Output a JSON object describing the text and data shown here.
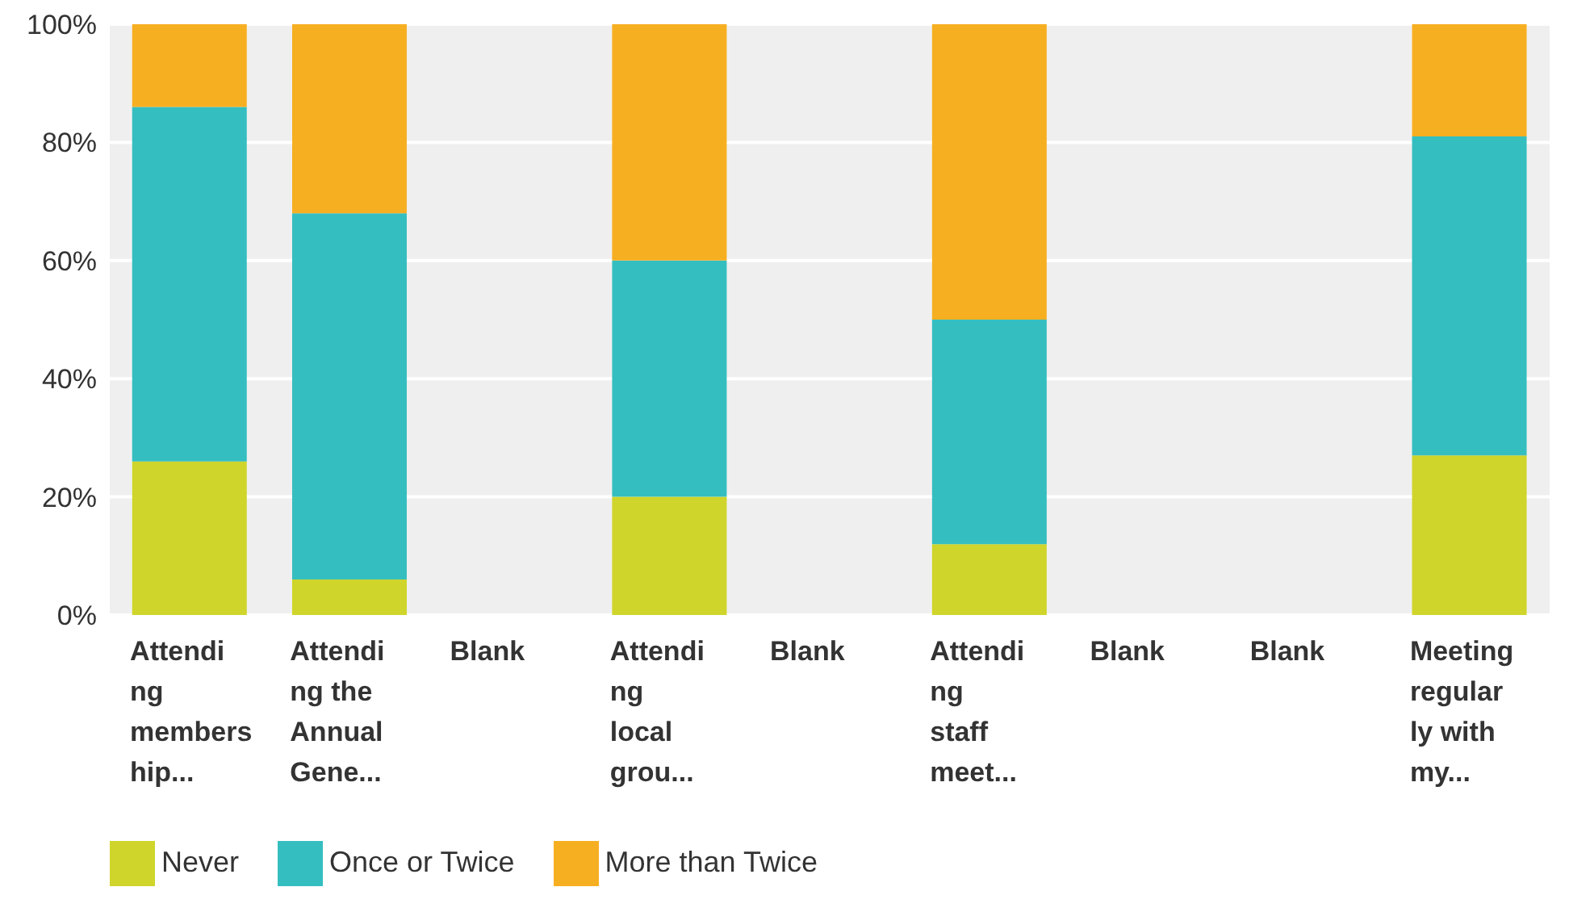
{
  "chart_data": {
    "type": "bar",
    "stacked": true,
    "categories": [
      "Attending membership...",
      "Attending the Annual Gene...",
      "Blank",
      "Attending local grou...",
      "Blank",
      "Attending staff meet...",
      "Blank",
      "Blank",
      "Meeting regularly with my..."
    ],
    "series": [
      {
        "name": "Never",
        "color": "#cfd52a",
        "values": [
          26,
          6,
          null,
          20,
          null,
          12,
          null,
          null,
          27
        ]
      },
      {
        "name": "Once or Twice",
        "color": "#35bec0",
        "values": [
          60,
          62,
          null,
          40,
          null,
          38,
          null,
          null,
          54
        ]
      },
      {
        "name": "More than Twice",
        "color": "#f7af22",
        "values": [
          14,
          32,
          null,
          40,
          null,
          50,
          null,
          null,
          19
        ]
      }
    ],
    "ylim": [
      0,
      100
    ],
    "yticks": [
      {
        "value": 0,
        "label": "0%"
      },
      {
        "value": 20,
        "label": "20%"
      },
      {
        "value": 40,
        "label": "40%"
      },
      {
        "value": 60,
        "label": "60%"
      },
      {
        "value": 80,
        "label": "80%"
      },
      {
        "value": 100,
        "label": "100%"
      }
    ],
    "grid": "y",
    "legend": "bottom left"
  }
}
